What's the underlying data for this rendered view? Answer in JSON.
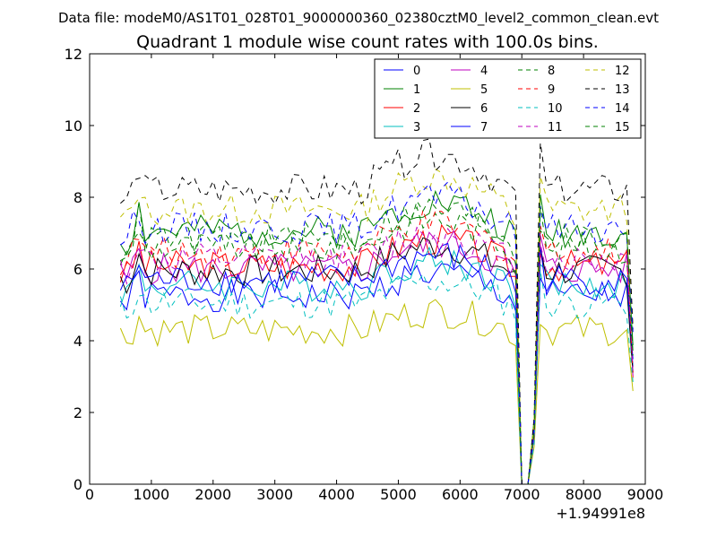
{
  "chart_data": {
    "type": "line",
    "suptitle": "Data file: modeM0/AS1T01_028T01_9000000360_02380cztM0_level2_common_clean.evt",
    "title": "Quadrant 1 module wise count rates with 100.0s bins.",
    "xlabel": "",
    "ylabel": "",
    "x_offset_label": "+1.94991e8",
    "xlim": [
      0,
      9000
    ],
    "ylim": [
      0,
      12
    ],
    "xticks": [
      "0",
      "1000",
      "2000",
      "3000",
      "4000",
      "5000",
      "6000",
      "7000",
      "8000",
      "9000"
    ],
    "yticks": [
      "0",
      "2",
      "4",
      "6",
      "8",
      "10",
      "12"
    ],
    "legend_position": "top-right",
    "legend_columns": 4,
    "x": [
      500,
      600,
      700,
      800,
      900,
      1000,
      1100,
      1200,
      1300,
      1400,
      1500,
      1600,
      1700,
      1800,
      1900,
      2000,
      2100,
      2200,
      2300,
      2400,
      2500,
      2600,
      2700,
      2800,
      2900,
      3000,
      3100,
      3200,
      3300,
      3400,
      3500,
      3600,
      3700,
      3800,
      3900,
      4000,
      4100,
      4200,
      4300,
      4400,
      4500,
      4600,
      4700,
      4800,
      4900,
      5000,
      5100,
      5200,
      5300,
      5400,
      5500,
      5600,
      5700,
      5800,
      5900,
      6000,
      6100,
      6200,
      6300,
      6400,
      6500,
      6600,
      6700,
      6800,
      6900,
      7000,
      7100,
      7200,
      7300,
      7400,
      7500,
      7600,
      7700,
      7800,
      7900,
      8000,
      8100,
      8200,
      8300,
      8400,
      8500,
      8600,
      8700,
      8800
    ],
    "series": [
      {
        "name": "0",
        "color": "#0000ff",
        "dash": "solid",
        "base": 5.25,
        "seed": 1
      },
      {
        "name": "1",
        "color": "#008000",
        "dash": "solid",
        "base": 7.05,
        "seed": 2
      },
      {
        "name": "2",
        "color": "#ff0000",
        "dash": "solid",
        "base": 6.1,
        "seed": 3
      },
      {
        "name": "3",
        "color": "#00bfbf",
        "dash": "solid",
        "base": 5.55,
        "seed": 4
      },
      {
        "name": "4",
        "color": "#bf00bf",
        "dash": "solid",
        "base": 6.0,
        "seed": 5
      },
      {
        "name": "5",
        "color": "#bfbf00",
        "dash": "solid",
        "base": 4.3,
        "seed": 6
      },
      {
        "name": "6",
        "color": "#000000",
        "dash": "solid",
        "base": 5.95,
        "seed": 7
      },
      {
        "name": "7",
        "color": "#0000ff",
        "dash": "solid",
        "base": 5.7,
        "seed": 8
      },
      {
        "name": "8",
        "color": "#008000",
        "dash": "dashed",
        "base": 6.6,
        "seed": 9
      },
      {
        "name": "9",
        "color": "#ff0000",
        "dash": "dashed",
        "base": 6.45,
        "seed": 10
      },
      {
        "name": "10",
        "color": "#00bfbf",
        "dash": "dashed",
        "base": 5.05,
        "seed": 11
      },
      {
        "name": "11",
        "color": "#bf00bf",
        "dash": "dashed",
        "base": 6.25,
        "seed": 12
      },
      {
        "name": "12",
        "color": "#bfbf00",
        "dash": "dashed",
        "base": 7.65,
        "seed": 13
      },
      {
        "name": "13",
        "color": "#000000",
        "dash": "dashed",
        "base": 8.2,
        "seed": 14
      },
      {
        "name": "14",
        "color": "#0000ff",
        "dash": "dashed",
        "base": 7.15,
        "seed": 15
      },
      {
        "name": "15",
        "color": "#008000",
        "dash": "dashed",
        "base": 6.85,
        "seed": 16
      }
    ],
    "notes": "All 16 series follow the same temporal profile: elevated near 600-700, broad plateau, rising toward ~6100, sharp drop to 0 near 6900-7100, recovery spike near 7300, then plateau until ~8800."
  }
}
